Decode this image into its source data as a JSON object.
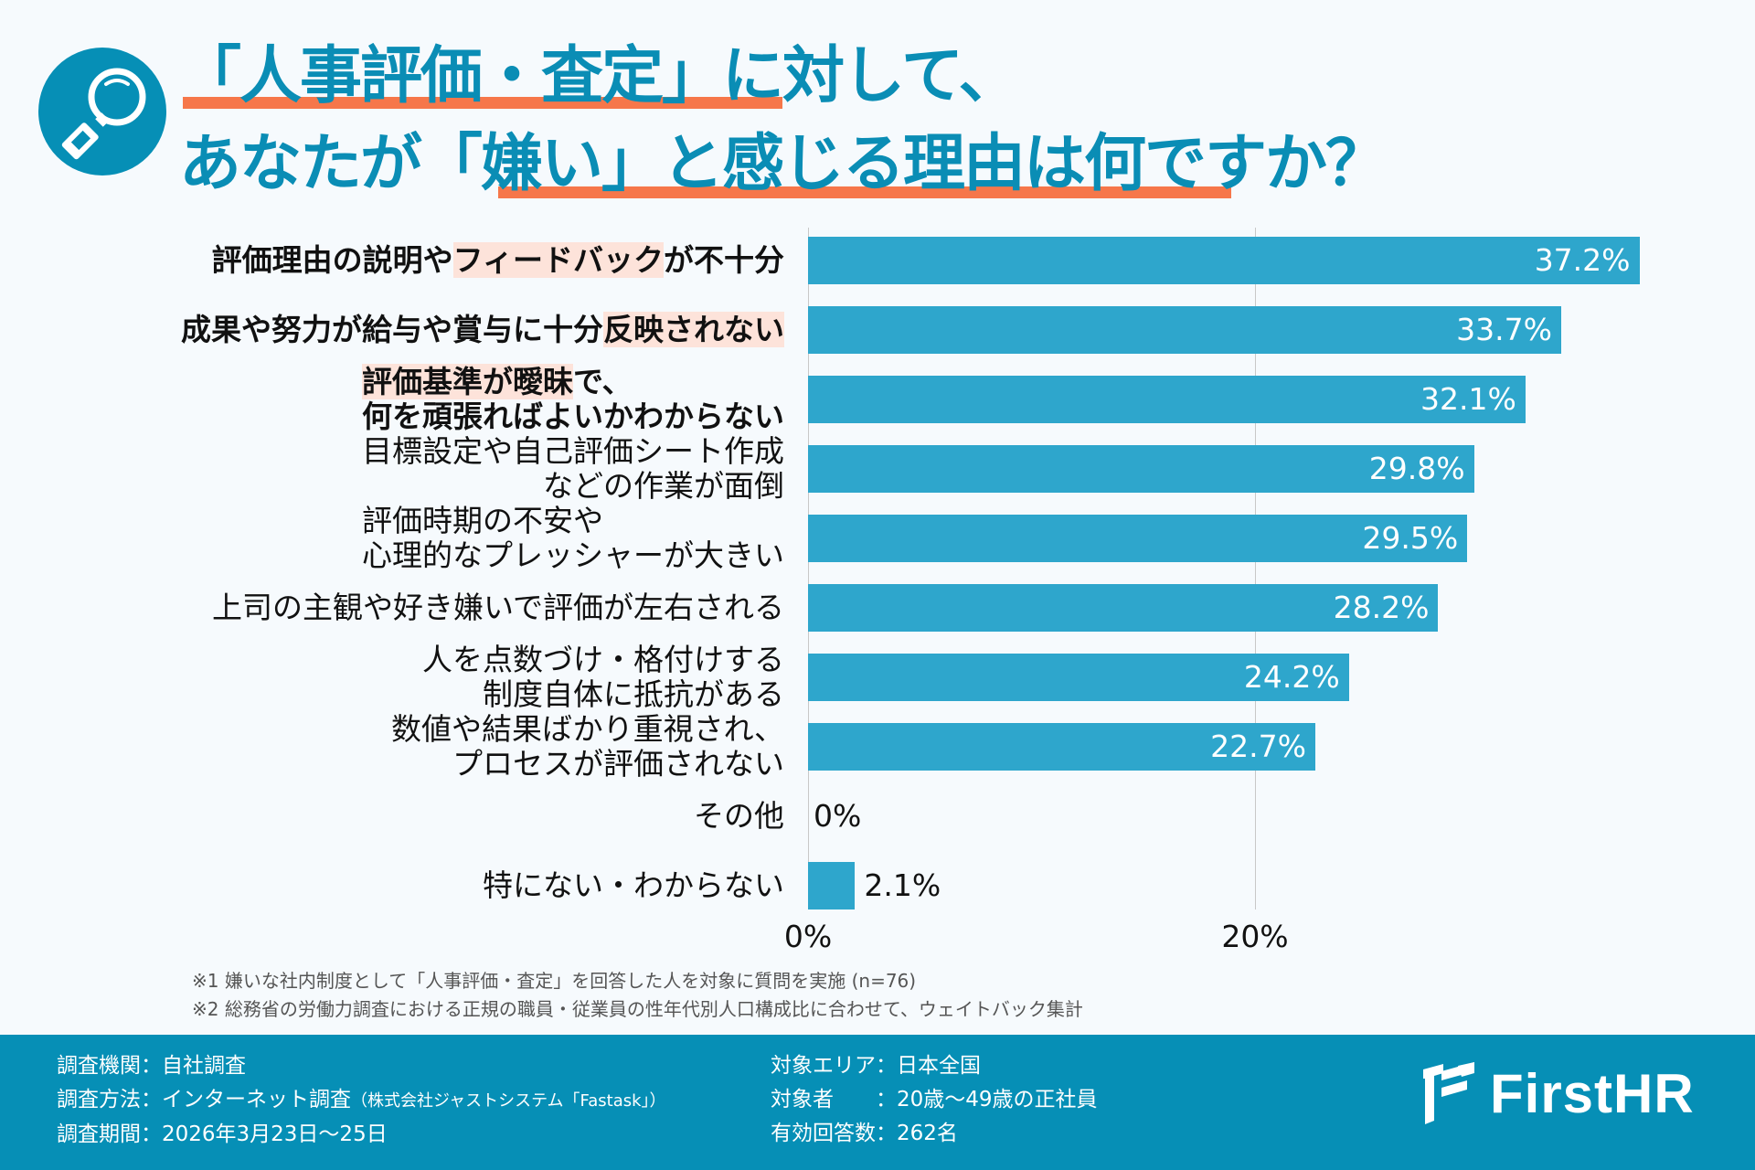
{
  "header": {
    "icon": "magnifier-icon",
    "title_line1": "「人事評価・査定」に対して、",
    "title_line2": "あなたが「嫌い」と感じる理由は何ですか？"
  },
  "colors": {
    "bar": "#2ea6cc",
    "title": "#0a8db5",
    "underline": "#f6774a",
    "highlight": "#fde3da",
    "footer_bg": "#068fb6"
  },
  "chart_data": {
    "type": "bar",
    "orientation": "horizontal",
    "title": "「人事評価・査定」に対して、あなたが「嫌い」と感じる理由は何ですか？",
    "categories": [
      "評価理由の説明やフィードバックが不十分",
      "成果や努力が給与や賞与に十分反映されない",
      "評価基準が曖昧で、何を頑張ればよいかわからない",
      "目標設定や自己評価シート作成などの作業が面倒",
      "評価時期の不安や心理的なプレッシャーが大きい",
      "上司の主観や好き嫌いで評価が左右される",
      "人を点数づけ・格付けする制度自体に抵抗がある",
      "数値や結果ばかり重視され、プロセスが評価されない",
      "その他",
      "特にない・わからない"
    ],
    "values": [
      37.2,
      33.7,
      32.1,
      29.8,
      29.5,
      28.2,
      24.2,
      22.7,
      0,
      2.1
    ],
    "value_labels": [
      "37.2%",
      "33.7%",
      "32.1%",
      "29.8%",
      "29.5%",
      "28.2%",
      "24.2%",
      "22.7%",
      "0%",
      "2.1%"
    ],
    "x_ticks": [
      0,
      20
    ],
    "x_tick_labels": [
      "0%",
      "20%"
    ],
    "xlim": [
      0,
      40
    ],
    "xlabel": "",
    "ylabel": "",
    "grid": true,
    "unit": "%"
  },
  "labels": [
    {
      "lines": [
        [
          {
            "t": "評価理由の説明や",
            "hl": false
          },
          {
            "t": "フィードバック",
            "hl": true
          },
          {
            "t": "が不十分",
            "hl": false
          }
        ]
      ],
      "bold": true
    },
    {
      "lines": [
        [
          {
            "t": "成果や努力が給与や賞与に十分",
            "hl": false
          },
          {
            "t": "反映されない",
            "hl": true
          }
        ]
      ],
      "bold": true
    },
    {
      "lines": [
        [
          {
            "t": "評価基準が曖昧",
            "hl": true
          },
          {
            "t": "で、",
            "hl": false
          }
        ],
        [
          {
            "t": "何を頑張ればよいかわからない",
            "hl": false
          }
        ]
      ],
      "bold": true
    },
    {
      "lines": [
        [
          {
            "t": "目標設定や自己評価シート作成",
            "hl": false
          }
        ],
        [
          {
            "t": "などの作業が面倒",
            "hl": false
          }
        ]
      ],
      "bold": false
    },
    {
      "lines": [
        [
          {
            "t": "評価時期の不安や",
            "hl": false
          }
        ],
        [
          {
            "t": "心理的なプレッシャーが大きい",
            "hl": false
          }
        ]
      ],
      "bold": false
    },
    {
      "lines": [
        [
          {
            "t": "上司の主観や好き嫌いで評価が左右される",
            "hl": false
          }
        ]
      ],
      "bold": false
    },
    {
      "lines": [
        [
          {
            "t": "人を点数づけ・格付けする",
            "hl": false
          }
        ],
        [
          {
            "t": "制度自体に抵抗がある",
            "hl": false
          }
        ]
      ],
      "bold": false
    },
    {
      "lines": [
        [
          {
            "t": "数値や結果ばかり重視され、",
            "hl": false
          }
        ],
        [
          {
            "t": "プロセスが評価されない",
            "hl": false
          }
        ]
      ],
      "bold": false
    },
    {
      "lines": [
        [
          {
            "t": "その他",
            "hl": false
          }
        ]
      ],
      "bold": false
    },
    {
      "lines": [
        [
          {
            "t": "特にない・わからない",
            "hl": false
          }
        ]
      ],
      "bold": false
    }
  ],
  "notes": [
    "※1  嫌いな社内制度として「人事評価・査定」を回答した人を対象に質問を実施 (n=76)",
    "※2  総務省の労働力調査における正規の職員・従業員の性年代別人口構成比に合わせて、ウェイトバック集計"
  ],
  "footer": {
    "left": [
      {
        "key": "調査機関",
        "value": "自社調査",
        "suffix": ""
      },
      {
        "key": "調査方法",
        "value": "インターネット調査",
        "suffix": "（株式会社ジャストシステム「Fastask」）"
      },
      {
        "key": "調査期間",
        "value": "2026年3月23日〜25日",
        "suffix": ""
      }
    ],
    "right": [
      {
        "key": "対象エリア",
        "value": "日本全国"
      },
      {
        "key": "対象者　　",
        "value": "20歳〜49歳の正社員"
      },
      {
        "key": "有効回答数",
        "value": "262名"
      }
    ],
    "separator": "：",
    "logo_text": "FirstHR"
  }
}
